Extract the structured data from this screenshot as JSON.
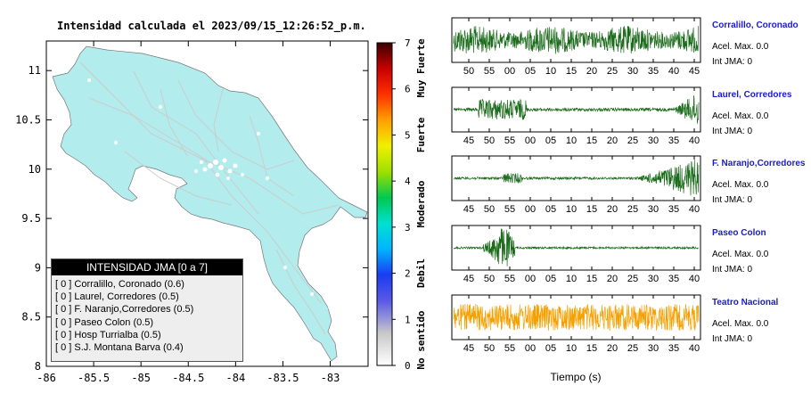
{
  "map": {
    "title": "Intensidad calculada el 2023/09/15_12:26:52_p.m.",
    "x_ticks": [
      "-86",
      "-85.5",
      "-85",
      "-84.5",
      "-84",
      "-83.5",
      "-83"
    ],
    "y_ticks": [
      "11",
      "10.5",
      "10",
      "9.5",
      "9",
      "8.5",
      "8"
    ],
    "fill_color": "#b2ecec"
  },
  "colorbar": {
    "ticks": [
      "0",
      "1",
      "2",
      "3",
      "4",
      "5",
      "6",
      "7"
    ],
    "labels": [
      "No sentido",
      "Debil",
      "Moderado",
      "Fuerte",
      "Muy Fuerte"
    ]
  },
  "legend": {
    "title": "INTENSIDAD JMA [0 a 7]",
    "items": [
      "[ 0 ]  Corralillo, Coronado (0.6)",
      "[ 0 ]  Laurel, Corredores (0.5)",
      "[ 0 ]  F. Naranjo,Corredores (0.5)",
      "[ 0 ]  Paseo Colon (0.5)",
      "[ 0 ]  Hosp Turrialba (0.5)",
      "[ 0 ]  S.J. Montana Barva (0.4)"
    ]
  },
  "waveforms": {
    "xlabel": "Tiempo (s)",
    "panels": [
      {
        "station": "Corralillo, Coronado",
        "acel": "Acel. Max. 0.0",
        "int": "Int JMA: 0",
        "ticks": [
          "50",
          "55",
          "00",
          "05",
          "10",
          "15",
          "20",
          "25",
          "30",
          "35",
          "40",
          "45"
        ],
        "color": "#1a6b1a"
      },
      {
        "station": "Laurel, Corredores",
        "acel": "Acel. Max. 0.0",
        "int": "Int JMA: 0",
        "ticks": [
          "45",
          "50",
          "55",
          "00",
          "05",
          "10",
          "15",
          "20",
          "25",
          "30",
          "35",
          "40"
        ],
        "color": "#1a6b1a"
      },
      {
        "station": "F. Naranjo,Corredores",
        "acel": "Acel. Max. 0.0",
        "int": "Int JMA: 0",
        "ticks": [
          "45",
          "50",
          "55",
          "00",
          "05",
          "10",
          "15",
          "20",
          "25",
          "30",
          "35",
          "40"
        ],
        "color": "#1a6b1a"
      },
      {
        "station": "Paseo Colon",
        "acel": "Acel. Max. 0.0",
        "int": "Int JMA: 0",
        "ticks": [
          "45",
          "50",
          "55",
          "00",
          "05",
          "10",
          "15",
          "20",
          "25",
          "30",
          "35",
          "40"
        ],
        "color": "#1a6b1a"
      },
      {
        "station": "Teatro Nacional",
        "acel": "Acel. Max. 0.0",
        "int": "Int JMA: 0",
        "ticks": [
          "45",
          "50",
          "55",
          "00",
          "05",
          "10",
          "15",
          "20",
          "25",
          "30",
          "35",
          "40"
        ],
        "color": "#f5a000"
      }
    ]
  },
  "chart_data": [
    {
      "type": "map",
      "title": "Intensidad calculada el 2023/09/15_12:26:52_p.m.",
      "xlim": [
        -86,
        -82.6
      ],
      "ylim": [
        8,
        11.3
      ],
      "x_ticks": [
        -86,
        -85.5,
        -85,
        -84.5,
        -84,
        -83.5,
        -83
      ],
      "y_ticks": [
        8,
        8.5,
        9,
        9.5,
        10,
        10.5,
        11
      ],
      "stations": [
        {
          "name": "Corralillo, Coronado",
          "jma": 0,
          "value": 0.6
        },
        {
          "name": "Laurel, Corredores",
          "jma": 0,
          "value": 0.5
        },
        {
          "name": "F. Naranjo,Corredores",
          "jma": 0,
          "value": 0.5
        },
        {
          "name": "Paseo Colon",
          "jma": 0,
          "value": 0.5
        },
        {
          "name": "Hosp Turrialba",
          "jma": 0,
          "value": 0.5
        },
        {
          "name": "S.J. Montana Barva",
          "jma": 0,
          "value": 0.4
        }
      ]
    },
    {
      "type": "colorbar",
      "range": [
        0,
        7
      ],
      "ticks": [
        0,
        1,
        2,
        3,
        4,
        5,
        6,
        7
      ],
      "category_labels": [
        "No sentido",
        "Debil",
        "Moderado",
        "Fuerte",
        "Muy Fuerte"
      ]
    },
    {
      "type": "line",
      "xlabel": "Tiempo (s)",
      "series": [
        {
          "name": "Corralillo, Coronado",
          "acel_max": 0.0,
          "int_jma": 0
        },
        {
          "name": "Laurel, Corredores",
          "acel_max": 0.0,
          "int_jma": 0
        },
        {
          "name": "F. Naranjo,Corredores",
          "acel_max": 0.0,
          "int_jma": 0
        },
        {
          "name": "Paseo Colon",
          "acel_max": 0.0,
          "int_jma": 0
        },
        {
          "name": "Teatro Nacional",
          "acel_max": 0.0,
          "int_jma": 0
        }
      ]
    }
  ]
}
